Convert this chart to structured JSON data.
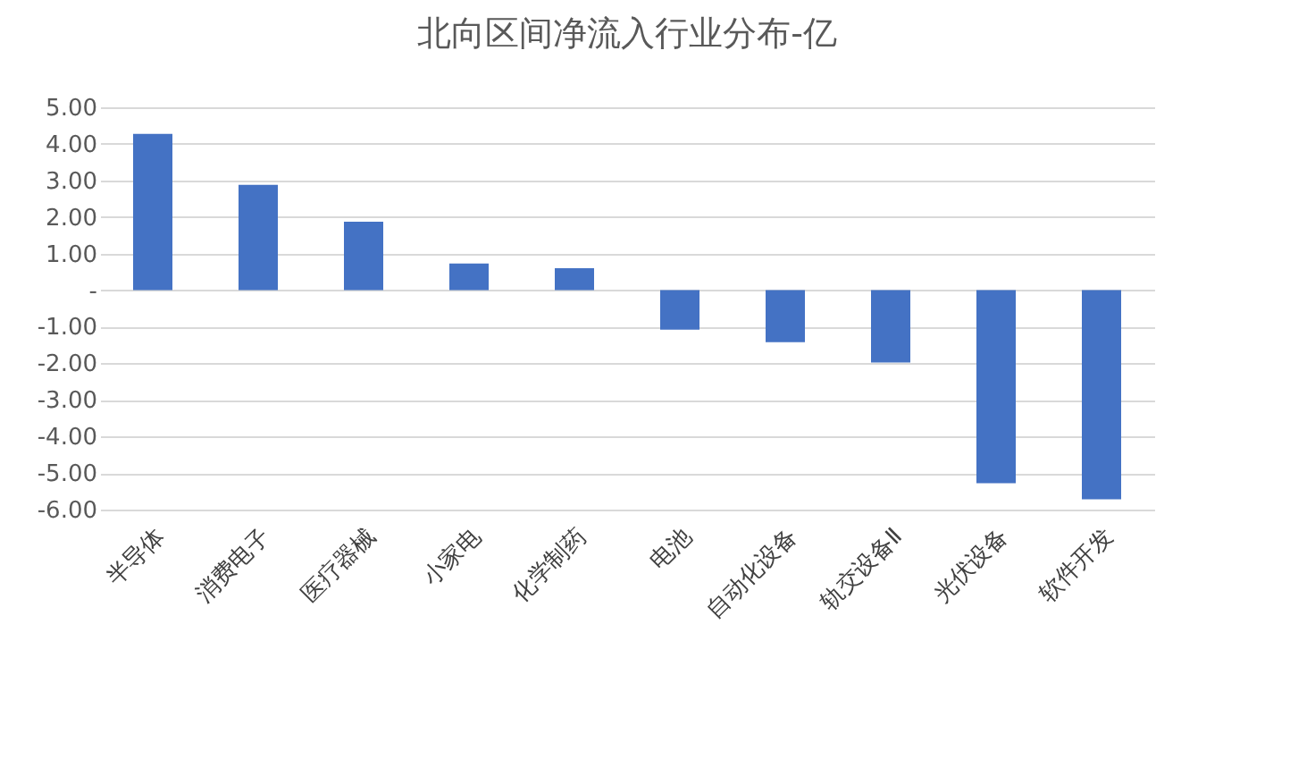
{
  "chart_data": {
    "type": "bar",
    "title": "北向区间净流入行业分布-亿",
    "categories": [
      "半导体",
      "消费电子",
      "医疗器械",
      "小家电",
      "化学制药",
      "电池",
      "自动化设备",
      "轨交设备Ⅱ",
      "光伏设备",
      "软件开发"
    ],
    "values": [
      4.27,
      2.88,
      1.87,
      0.73,
      0.6,
      -1.08,
      -1.42,
      -1.98,
      -5.28,
      -5.72
    ],
    "color": "#4472c4",
    "ylim": [
      -6,
      5
    ],
    "yticks": [
      {
        "value": 5,
        "label": "5.00"
      },
      {
        "value": 4,
        "label": "4.00"
      },
      {
        "value": 3,
        "label": "3.00"
      },
      {
        "value": 2,
        "label": "2.00"
      },
      {
        "value": 1,
        "label": "1.00"
      },
      {
        "value": 0,
        "label": "-"
      },
      {
        "value": -1,
        "label": "-1.00"
      },
      {
        "value": -2,
        "label": "-2.00"
      },
      {
        "value": -3,
        "label": "-3.00"
      },
      {
        "value": -4,
        "label": "-4.00"
      },
      {
        "value": -5,
        "label": "-5.00"
      },
      {
        "value": -6,
        "label": "-6.00"
      }
    ],
    "grid": true
  }
}
